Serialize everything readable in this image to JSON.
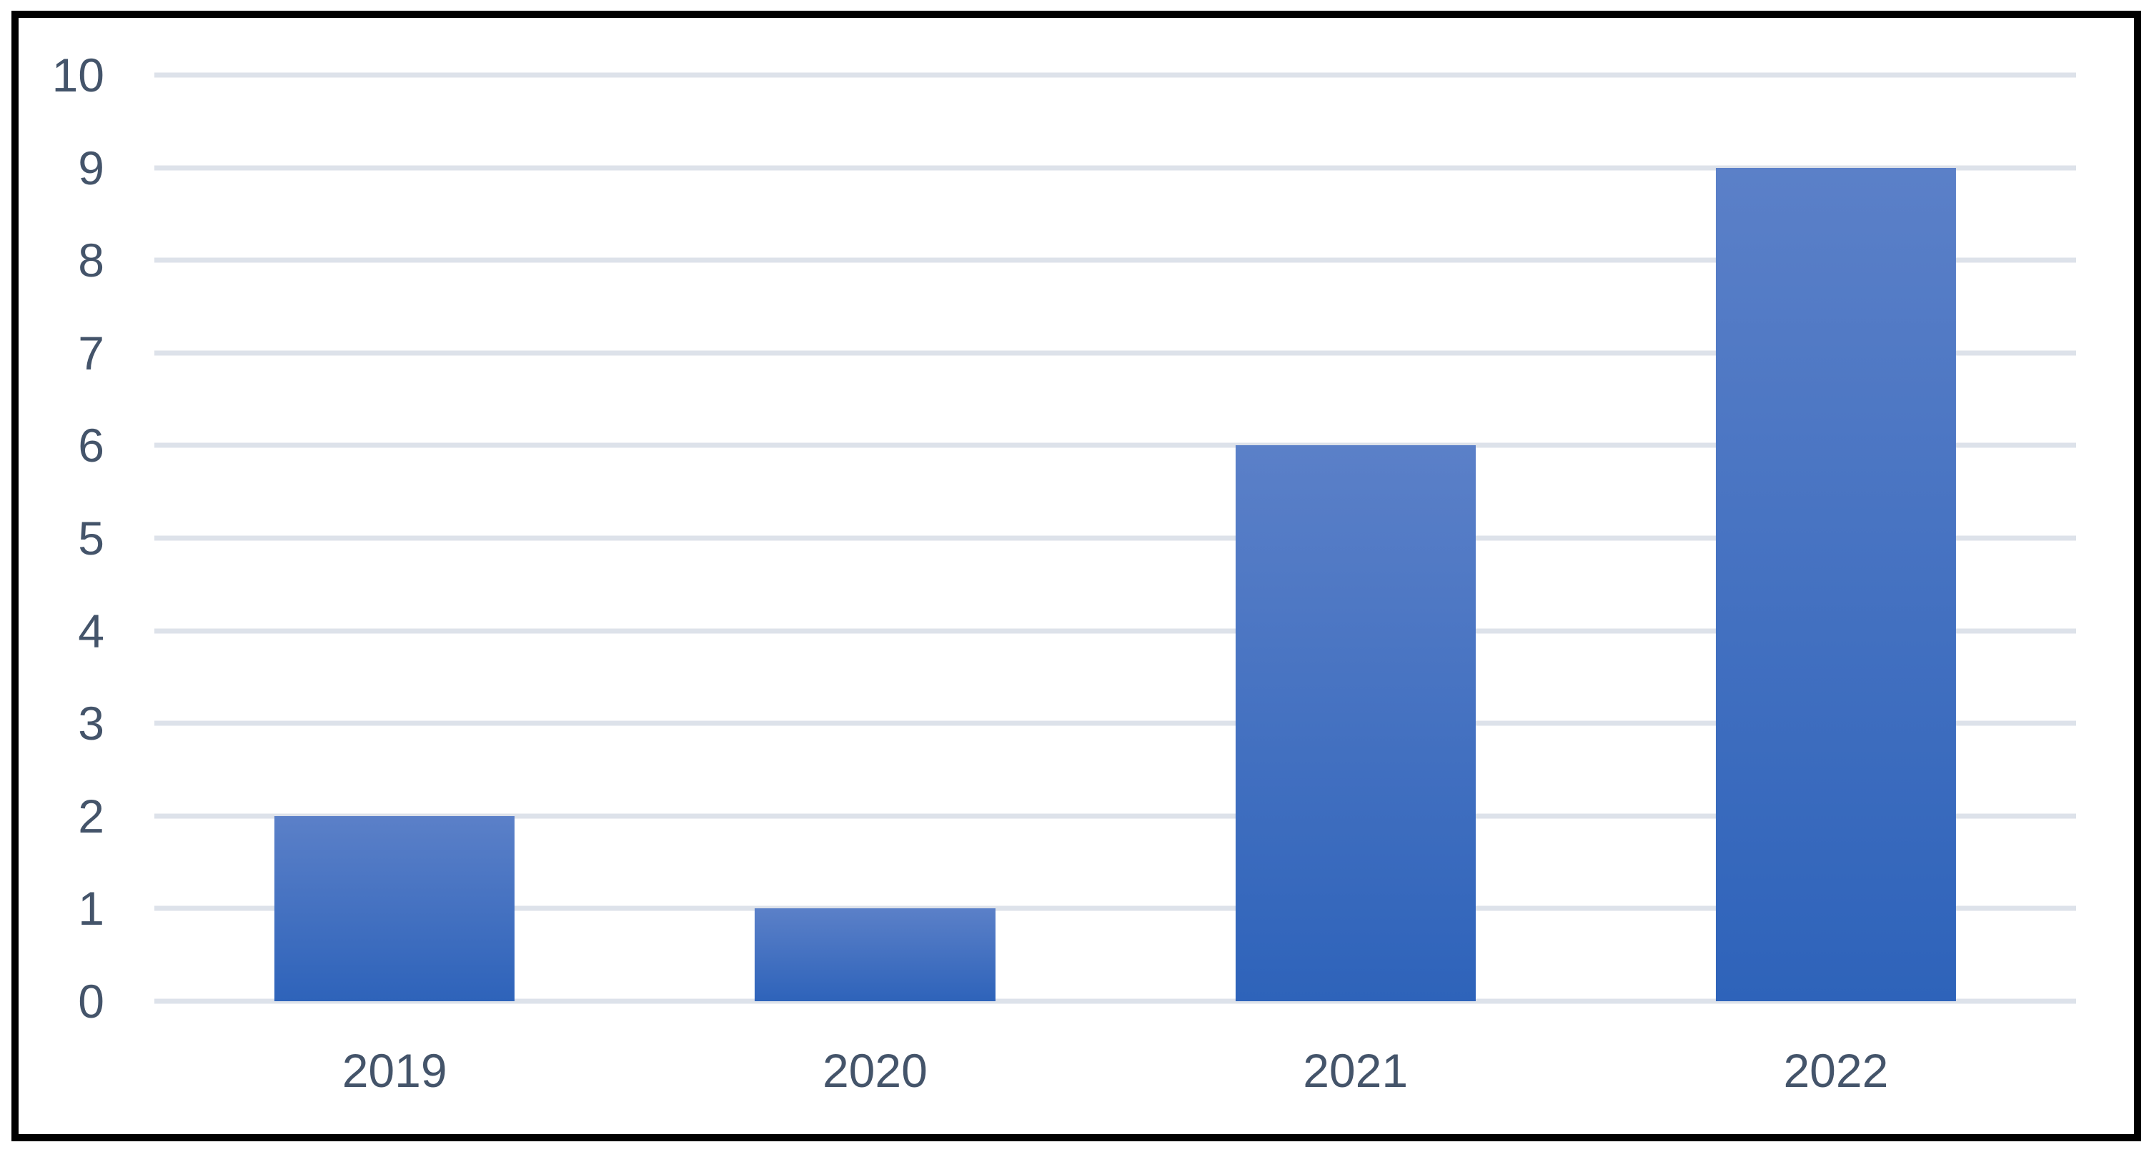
{
  "chart_data": {
    "type": "bar",
    "categories": [
      "2019",
      "2020",
      "2021",
      "2022"
    ],
    "values": [
      2,
      1,
      6,
      9
    ],
    "title": "",
    "xlabel": "",
    "ylabel": "",
    "ylim": [
      0,
      10
    ],
    "yticks": [
      0,
      1,
      2,
      3,
      4,
      5,
      6,
      7,
      8,
      9,
      10
    ],
    "grid": true,
    "legend": false,
    "colors": {
      "bar_gradient_top": "#5b80c8",
      "bar_gradient_bottom": "#2e63ba",
      "gridline": "#dde2ea",
      "tick_label": "#44546a",
      "frame_border": "#000000",
      "background": "#ffffff"
    }
  }
}
